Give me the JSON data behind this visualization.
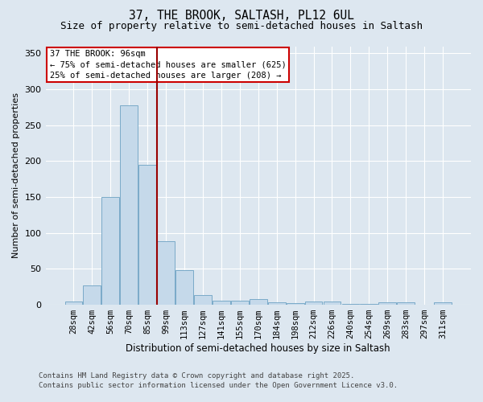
{
  "title1": "37, THE BROOK, SALTASH, PL12 6UL",
  "title2": "Size of property relative to semi-detached houses in Saltash",
  "xlabel": "Distribution of semi-detached houses by size in Saltash",
  "ylabel": "Number of semi-detached properties",
  "categories": [
    "28sqm",
    "42sqm",
    "56sqm",
    "70sqm",
    "85sqm",
    "99sqm",
    "113sqm",
    "127sqm",
    "141sqm",
    "155sqm",
    "170sqm",
    "184sqm",
    "198sqm",
    "212sqm",
    "226sqm",
    "240sqm",
    "254sqm",
    "269sqm",
    "283sqm",
    "297sqm",
    "311sqm"
  ],
  "values": [
    5,
    27,
    150,
    278,
    195,
    88,
    48,
    13,
    6,
    6,
    8,
    4,
    2,
    5,
    5,
    1,
    1,
    3,
    4,
    0,
    4
  ],
  "bar_color": "#c5d9ea",
  "bar_edge_color": "#7aaac8",
  "vline_x": 4.5,
  "vline_color": "#990000",
  "annotation_title": "37 THE BROOK: 96sqm",
  "annotation_line1": "← 75% of semi-detached houses are smaller (625)",
  "annotation_line2": "25% of semi-detached houses are larger (208) →",
  "annotation_box_facecolor": "#ffffff",
  "annotation_box_edgecolor": "#cc0000",
  "ylim": [
    0,
    360
  ],
  "yticks": [
    0,
    50,
    100,
    150,
    200,
    250,
    300,
    350
  ],
  "footer1": "Contains HM Land Registry data © Crown copyright and database right 2025.",
  "footer2": "Contains public sector information licensed under the Open Government Licence v3.0.",
  "bg_color": "#dde7f0",
  "grid_color": "#ffffff",
  "title1_fontsize": 10.5,
  "title2_fontsize": 9,
  "tick_fontsize": 7.5,
  "ylabel_fontsize": 8,
  "xlabel_fontsize": 8.5,
  "annotation_fontsize": 7.5,
  "footer_fontsize": 6.5
}
